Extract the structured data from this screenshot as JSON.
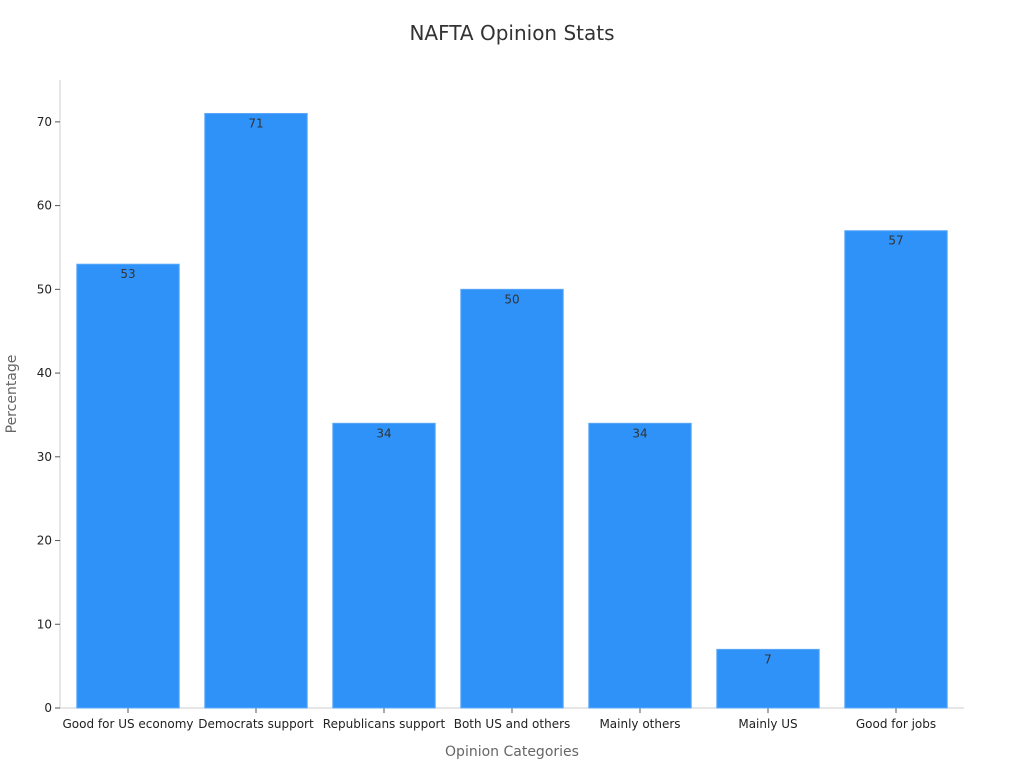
{
  "chart_data": {
    "type": "bar",
    "title": "NAFTA Opinion Stats",
    "xlabel": "Opinion Categories",
    "ylabel": "Percentage",
    "categories": [
      "Good for US economy",
      "Democrats support",
      "Republicans support",
      "Both US and others",
      "Mainly others",
      "Mainly US",
      "Good for jobs"
    ],
    "values": [
      53,
      71,
      34,
      50,
      34,
      7,
      57
    ],
    "ylim": [
      0,
      75
    ],
    "yticks": [
      0,
      10,
      20,
      30,
      40,
      50,
      60,
      70
    ],
    "grid": false,
    "legend": "none",
    "colors": {
      "bar": "#2f92f9",
      "bar_edge": "#5aa8fa",
      "axis": "#cccccc",
      "tick": "#555555"
    }
  }
}
